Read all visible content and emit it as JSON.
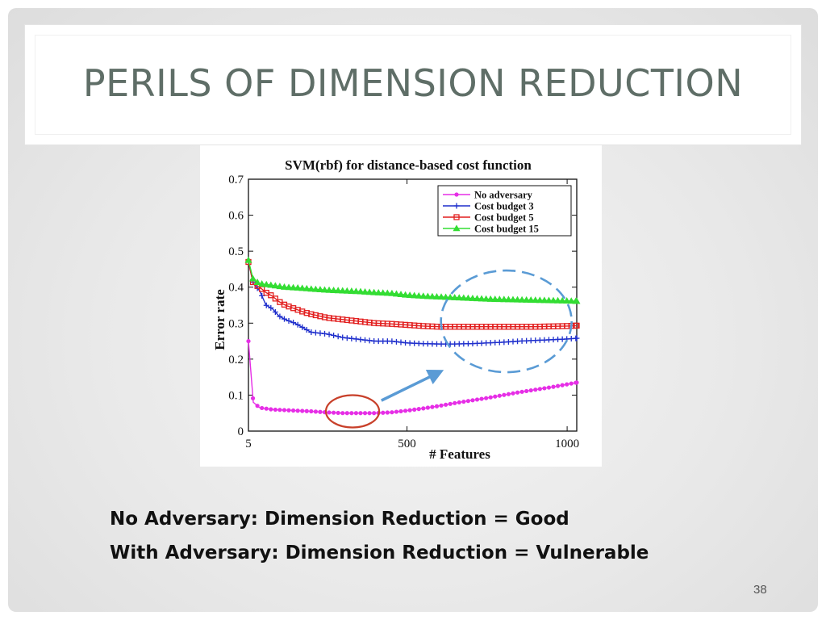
{
  "slide": {
    "title": "PERILS OF DIMENSION REDUCTION",
    "caption_lines": [
      "No Adversary: Dimension Reduction = Good",
      "With Adversary: Dimension Reduction = Vulnerable"
    ],
    "page_number": "38"
  },
  "colors": {
    "title_text": "#5f6e67",
    "no_adversary": "#e62ee6",
    "cost_budget_3": "#1f2fcc",
    "cost_budget_5": "#e21f1f",
    "cost_budget_15": "#33dd33",
    "annotation_red_ellipse": "#c8402a",
    "annotation_blue": "#5a9bd5"
  },
  "chart_data": {
    "type": "line",
    "title": "SVM(rbf) for distance-based cost function",
    "xlabel": "# Features",
    "ylabel": "Error rate",
    "xlim": [
      5,
      1030
    ],
    "ylim": [
      0,
      0.7
    ],
    "x_ticks": [
      5,
      500,
      1000
    ],
    "y_ticks": [
      0,
      0.1,
      0.2,
      0.3,
      0.4,
      0.5,
      0.6,
      0.7
    ],
    "grid": false,
    "legend_position": "top-right",
    "series": [
      {
        "name": "No adversary",
        "color": "#e62ee6",
        "marker": "dot",
        "points": [
          [
            5,
            0.25
          ],
          [
            20,
            0.08
          ],
          [
            40,
            0.065
          ],
          [
            80,
            0.06
          ],
          [
            150,
            0.057
          ],
          [
            200,
            0.055
          ],
          [
            250,
            0.052
          ],
          [
            300,
            0.05
          ],
          [
            350,
            0.05
          ],
          [
            400,
            0.05
          ],
          [
            450,
            0.052
          ],
          [
            500,
            0.057
          ],
          [
            550,
            0.063
          ],
          [
            600,
            0.07
          ],
          [
            650,
            0.078
          ],
          [
            700,
            0.085
          ],
          [
            750,
            0.092
          ],
          [
            800,
            0.1
          ],
          [
            850,
            0.108
          ],
          [
            900,
            0.115
          ],
          [
            950,
            0.122
          ],
          [
            1000,
            0.13
          ],
          [
            1030,
            0.135
          ]
        ]
      },
      {
        "name": "Cost budget 3",
        "color": "#1f2fcc",
        "marker": "plus",
        "points": [
          [
            5,
            0.47
          ],
          [
            20,
            0.41
          ],
          [
            40,
            0.39
          ],
          [
            60,
            0.35
          ],
          [
            80,
            0.34
          ],
          [
            100,
            0.32
          ],
          [
            120,
            0.31
          ],
          [
            150,
            0.3
          ],
          [
            180,
            0.285
          ],
          [
            200,
            0.275
          ],
          [
            250,
            0.27
          ],
          [
            300,
            0.26
          ],
          [
            350,
            0.255
          ],
          [
            400,
            0.25
          ],
          [
            450,
            0.25
          ],
          [
            500,
            0.245
          ],
          [
            550,
            0.243
          ],
          [
            600,
            0.242
          ],
          [
            650,
            0.242
          ],
          [
            700,
            0.243
          ],
          [
            750,
            0.245
          ],
          [
            800,
            0.247
          ],
          [
            850,
            0.25
          ],
          [
            900,
            0.252
          ],
          [
            950,
            0.254
          ],
          [
            1000,
            0.256
          ],
          [
            1030,
            0.258
          ]
        ]
      },
      {
        "name": "Cost budget 5",
        "color": "#e21f1f",
        "marker": "square",
        "points": [
          [
            5,
            0.47
          ],
          [
            20,
            0.41
          ],
          [
            40,
            0.4
          ],
          [
            60,
            0.385
          ],
          [
            80,
            0.375
          ],
          [
            100,
            0.36
          ],
          [
            120,
            0.35
          ],
          [
            150,
            0.34
          ],
          [
            180,
            0.33
          ],
          [
            200,
            0.325
          ],
          [
            250,
            0.315
          ],
          [
            300,
            0.31
          ],
          [
            350,
            0.305
          ],
          [
            400,
            0.3
          ],
          [
            450,
            0.298
          ],
          [
            500,
            0.295
          ],
          [
            550,
            0.292
          ],
          [
            600,
            0.29
          ],
          [
            650,
            0.29
          ],
          [
            700,
            0.29
          ],
          [
            750,
            0.29
          ],
          [
            800,
            0.29
          ],
          [
            850,
            0.29
          ],
          [
            900,
            0.29
          ],
          [
            950,
            0.291
          ],
          [
            1000,
            0.292
          ],
          [
            1030,
            0.293
          ]
        ]
      },
      {
        "name": "Cost budget 15",
        "color": "#33dd33",
        "marker": "triangle",
        "points": [
          [
            5,
            0.475
          ],
          [
            20,
            0.42
          ],
          [
            40,
            0.41
          ],
          [
            80,
            0.405
          ],
          [
            120,
            0.4
          ],
          [
            160,
            0.398
          ],
          [
            200,
            0.395
          ],
          [
            250,
            0.392
          ],
          [
            300,
            0.39
          ],
          [
            350,
            0.388
          ],
          [
            400,
            0.385
          ],
          [
            450,
            0.383
          ],
          [
            500,
            0.378
          ],
          [
            550,
            0.375
          ],
          [
            600,
            0.373
          ],
          [
            650,
            0.371
          ],
          [
            700,
            0.369
          ],
          [
            750,
            0.367
          ],
          [
            800,
            0.366
          ],
          [
            850,
            0.365
          ],
          [
            900,
            0.364
          ],
          [
            950,
            0.363
          ],
          [
            1000,
            0.362
          ],
          [
            1030,
            0.361
          ]
        ]
      }
    ],
    "annotations": [
      {
        "type": "ellipse",
        "style": "solid",
        "color": "#c8402a",
        "center": [
          330,
          0.055
        ]
      },
      {
        "type": "ellipse",
        "style": "dashed",
        "color": "#5a9bd5",
        "center": [
          810,
          0.305
        ]
      },
      {
        "type": "arrow",
        "color": "#5a9bd5",
        "from": [
          420,
          0.085
        ],
        "to": [
          615,
          0.17
        ]
      }
    ]
  }
}
